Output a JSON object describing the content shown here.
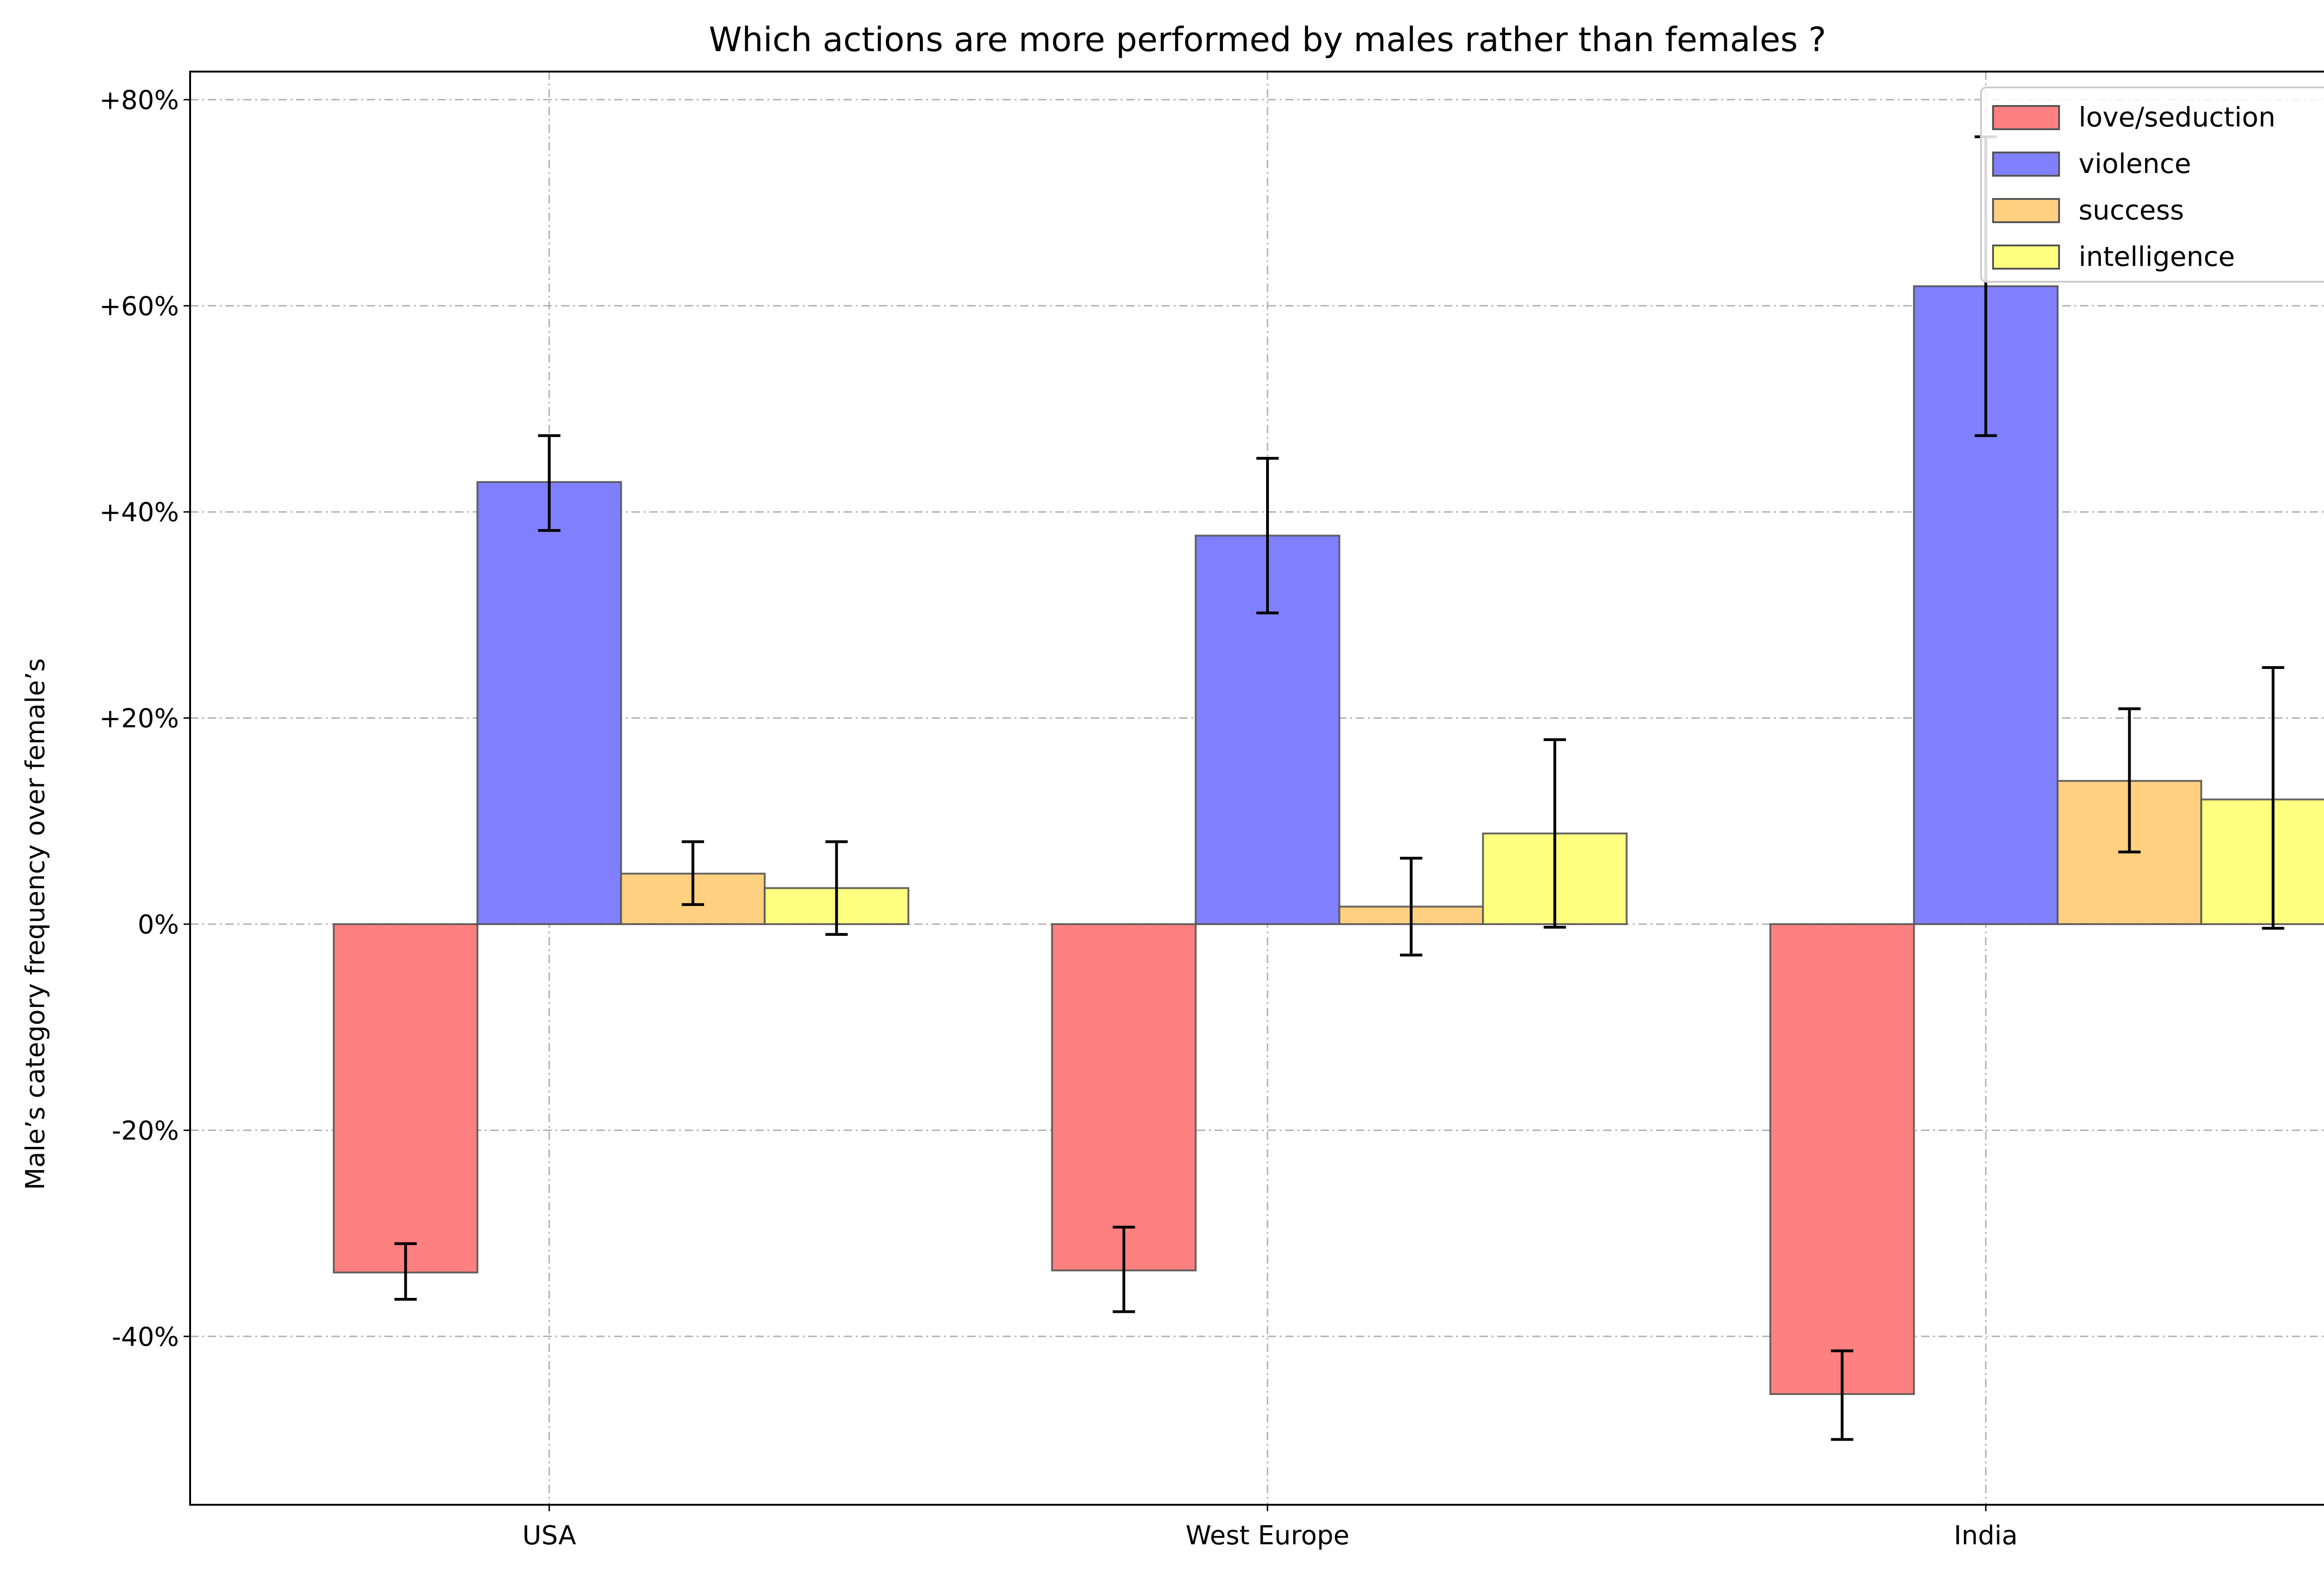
{
  "chart_data": {
    "type": "bar",
    "title": "Which actions are more performed by males rather than females ?",
    "xlabel": "",
    "ylabel": "Male’s category frequency over female’s",
    "categories": [
      "USA",
      "West Europe",
      "India"
    ],
    "y_tick_values": [
      80,
      60,
      40,
      20,
      0,
      -20,
      -40
    ],
    "y_tick_labels": [
      "+80%",
      "+60%",
      "+40%",
      "+20%",
      "0%",
      "-20%",
      "-40%"
    ],
    "ylim": [
      -56,
      83
    ],
    "grid": true,
    "legend_position": "top-right",
    "series": [
      {
        "name": "love/seduction",
        "color": "#ff8080",
        "values": [
          -33.8,
          -33.6,
          -45.6
        ],
        "err_low": [
          -36.4,
          -37.6,
          -50.0
        ],
        "err_high": [
          -31.0,
          -29.4,
          -41.4
        ]
      },
      {
        "name": "violence",
        "color": "#8080ff",
        "values": [
          42.9,
          37.7,
          61.9
        ],
        "err_low": [
          38.2,
          30.2,
          47.4
        ],
        "err_high": [
          47.4,
          45.2,
          76.4
        ]
      },
      {
        "name": "success",
        "color": "#ffd080",
        "values": [
          4.9,
          1.7,
          13.9
        ],
        "err_low": [
          1.9,
          -3.0,
          7.0
        ],
        "err_high": [
          8.0,
          6.4,
          20.9
        ]
      },
      {
        "name": "intelligence",
        "color": "#ffff80",
        "values": [
          3.5,
          8.8,
          12.1
        ],
        "err_low": [
          -1.0,
          -0.3,
          -0.4
        ],
        "err_high": [
          8.0,
          17.9,
          24.9
        ]
      }
    ]
  }
}
